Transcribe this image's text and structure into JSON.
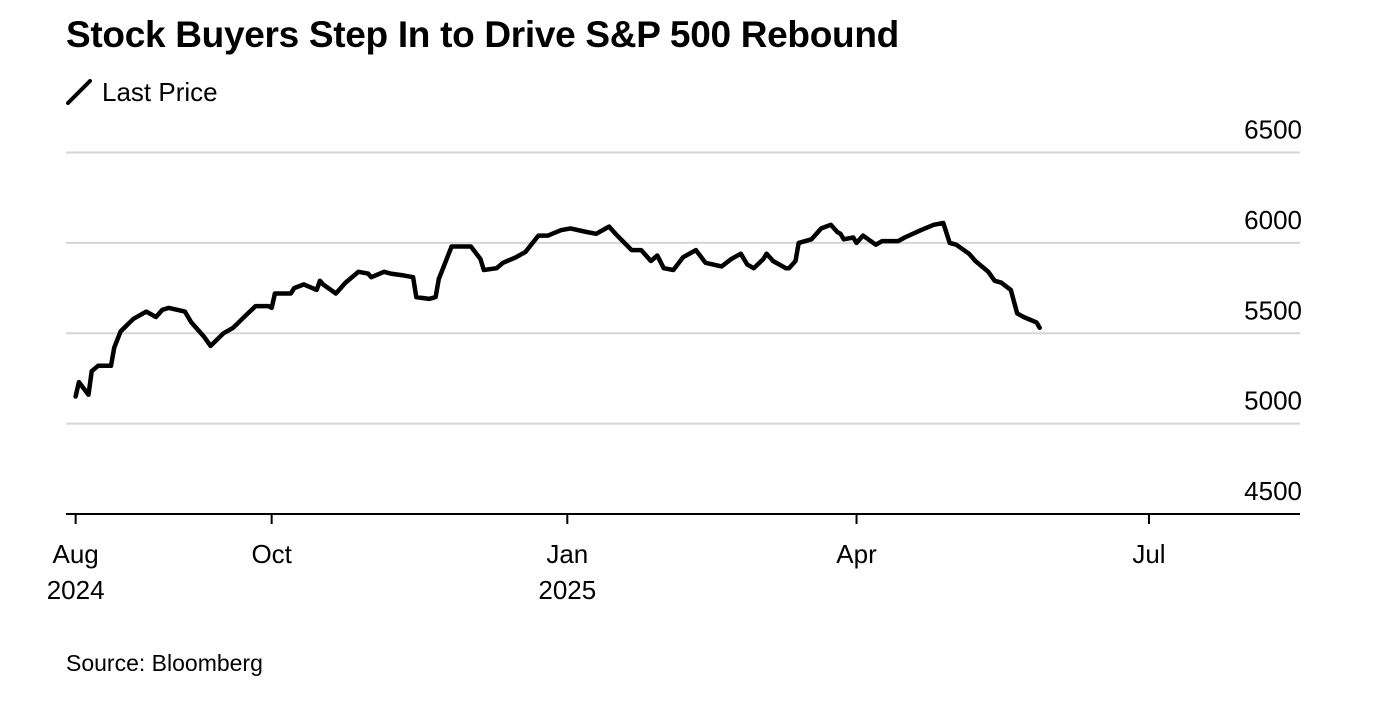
{
  "chart_data": {
    "type": "line",
    "title": "Stock Buyers Step In to Drive S&P 500 Rebound",
    "source": "Source: Bloomberg",
    "legend_position": "top-left",
    "grid": true,
    "ylim": [
      4500,
      6500
    ],
    "y_ticks": [
      4500,
      5000,
      5500,
      6000,
      6500
    ],
    "y_tick_labels": [
      "4500",
      "5000",
      "5500",
      "6000",
      "6500"
    ],
    "x_ticks": [
      {
        "date": "2024-08-01",
        "label": "Aug",
        "year": "2024"
      },
      {
        "date": "2024-10-01",
        "label": "Oct",
        "year": ""
      },
      {
        "date": "2025-01-01",
        "label": "Jan",
        "year": "2025"
      },
      {
        "date": "2025-04-01",
        "label": "Apr",
        "year": ""
      },
      {
        "date": "2025-07-01",
        "label": "Jul",
        "year": ""
      }
    ],
    "xlim": [
      "2024-07-29",
      "2025-08-17"
    ],
    "series": [
      {
        "name": "Last Price",
        "color": "#000000",
        "points": [
          [
            "2024-08-01",
            5150
          ],
          [
            "2024-08-02",
            5230
          ],
          [
            "2024-08-05",
            5160
          ],
          [
            "2024-08-06",
            5290
          ],
          [
            "2024-08-08",
            5320
          ],
          [
            "2024-08-12",
            5320
          ],
          [
            "2024-08-13",
            5420
          ],
          [
            "2024-08-15",
            5510
          ],
          [
            "2024-08-19",
            5580
          ],
          [
            "2024-08-23",
            5620
          ],
          [
            "2024-08-26",
            5590
          ],
          [
            "2024-08-28",
            5630
          ],
          [
            "2024-08-30",
            5640
          ],
          [
            "2024-09-04",
            5620
          ],
          [
            "2024-09-06",
            5560
          ],
          [
            "2024-09-10",
            5480
          ],
          [
            "2024-09-12",
            5430
          ],
          [
            "2024-09-16",
            5500
          ],
          [
            "2024-09-19",
            5530
          ],
          [
            "2024-09-23",
            5600
          ],
          [
            "2024-09-26",
            5650
          ],
          [
            "2024-09-30",
            5650
          ],
          [
            "2024-10-01",
            5640
          ],
          [
            "2024-10-02",
            5720
          ],
          [
            "2024-10-07",
            5720
          ],
          [
            "2024-10-08",
            5750
          ],
          [
            "2024-10-11",
            5770
          ],
          [
            "2024-10-15",
            5740
          ],
          [
            "2024-10-16",
            5790
          ],
          [
            "2024-10-17",
            5770
          ],
          [
            "2024-10-21",
            5720
          ],
          [
            "2024-10-24",
            5780
          ],
          [
            "2024-10-28",
            5840
          ],
          [
            "2024-10-31",
            5830
          ],
          [
            "2024-11-01",
            5810
          ],
          [
            "2024-11-05",
            5840
          ],
          [
            "2024-11-07",
            5830
          ],
          [
            "2024-11-11",
            5820
          ],
          [
            "2024-11-14",
            5810
          ],
          [
            "2024-11-15",
            5700
          ],
          [
            "2024-11-19",
            5690
          ],
          [
            "2024-11-21",
            5700
          ],
          [
            "2024-11-22",
            5800
          ],
          [
            "2024-11-26",
            5980
          ],
          [
            "2024-11-29",
            5980
          ],
          [
            "2024-12-02",
            5980
          ],
          [
            "2024-12-05",
            5910
          ],
          [
            "2024-12-06",
            5850
          ],
          [
            "2024-12-10",
            5860
          ],
          [
            "2024-12-12",
            5890
          ],
          [
            "2024-12-16",
            5920
          ],
          [
            "2024-12-19",
            5950
          ],
          [
            "2024-12-23",
            6040
          ],
          [
            "2024-12-26",
            6040
          ],
          [
            "2024-12-30",
            6070
          ],
          [
            "2025-01-02",
            6080
          ],
          [
            "2025-01-07",
            6060
          ],
          [
            "2025-01-10",
            6050
          ],
          [
            "2025-01-13",
            6080
          ],
          [
            "2025-01-14",
            6090
          ],
          [
            "2025-01-16",
            6050
          ],
          [
            "2025-01-21",
            5960
          ],
          [
            "2025-01-24",
            5960
          ],
          [
            "2025-01-27",
            5900
          ],
          [
            "2025-01-29",
            5930
          ],
          [
            "2025-01-31",
            5860
          ],
          [
            "2025-02-03",
            5850
          ],
          [
            "2025-02-06",
            5920
          ],
          [
            "2025-02-10",
            5960
          ],
          [
            "2025-02-13",
            5890
          ],
          [
            "2025-02-18",
            5870
          ],
          [
            "2025-02-21",
            5910
          ],
          [
            "2025-02-24",
            5940
          ],
          [
            "2025-02-26",
            5880
          ],
          [
            "2025-02-28",
            5860
          ],
          [
            "2025-03-03",
            5910
          ],
          [
            "2025-03-04",
            5940
          ],
          [
            "2025-03-06",
            5900
          ],
          [
            "2025-03-10",
            5860
          ],
          [
            "2025-03-11",
            5860
          ],
          [
            "2025-03-13",
            5900
          ],
          [
            "2025-03-14",
            6000
          ],
          [
            "2025-03-18",
            6020
          ],
          [
            "2025-03-20",
            6060
          ],
          [
            "2025-03-21",
            6080
          ],
          [
            "2025-03-24",
            6100
          ],
          [
            "2025-03-26",
            6060
          ],
          [
            "2025-03-27",
            6050
          ],
          [
            "2025-03-28",
            6020
          ],
          [
            "2025-03-31",
            6030
          ],
          [
            "2025-04-01",
            6000
          ],
          [
            "2025-04-03",
            6040
          ],
          [
            "2025-04-07",
            5990
          ],
          [
            "2025-04-09",
            6010
          ],
          [
            "2025-04-14",
            6010
          ],
          [
            "2025-04-16",
            6030
          ],
          [
            "2025-04-21",
            6070
          ],
          [
            "2025-04-25",
            6100
          ],
          [
            "2025-04-28",
            6110
          ],
          [
            "2025-04-30",
            6000
          ],
          [
            "2025-05-02",
            5990
          ],
          [
            "2025-05-06",
            5940
          ],
          [
            "2025-05-08",
            5900
          ],
          [
            "2025-05-12",
            5840
          ],
          [
            "2025-05-14",
            5790
          ],
          [
            "2025-05-16",
            5780
          ],
          [
            "2025-05-19",
            5740
          ],
          [
            "2025-05-21",
            5610
          ],
          [
            "2025-05-23",
            5590
          ],
          [
            "2025-05-27",
            5560
          ],
          [
            "2025-05-28",
            5530
          ]
        ]
      }
    ]
  },
  "title": "Stock Buyers Step In to Drive S&P 500 Rebound",
  "legend": {
    "label": "Last Price"
  },
  "source": "Source: Bloomberg"
}
